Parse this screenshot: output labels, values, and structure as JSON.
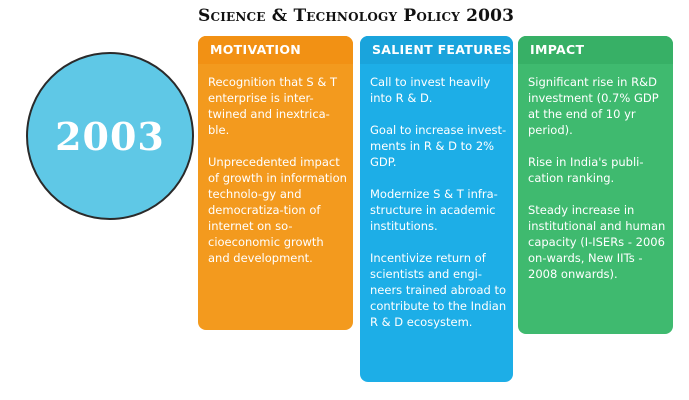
{
  "title": "Science & Technology Policy 2003",
  "year": "2003",
  "columns": [
    {
      "header": "MOTIVATION",
      "items": [
        "Recognition that S & T enterprise is inter-twined and inextrica-ble.",
        "Unprecedented impact of growth in information technolo-gy and democratiza-tion of internet on so-cioeconomic growth and development."
      ]
    },
    {
      "header": "SALIENT FEATURES",
      "items": [
        "Call to invest heavily into R & D.",
        "Goal to increase invest-ments in R & D to 2% GDP.",
        "Modernize S & T infra-structure in academic institutions.",
        "Incentivize return of scientists and engi-neers trained abroad to contribute to the Indian R & D ecosystem."
      ]
    },
    {
      "header": "IMPACT",
      "items": [
        "Significant rise in R&D investment (0.7% GDP at the end of 10 yr period).",
        "Rise in India's publi-cation ranking.",
        "Steady increase in institutional and human capacity (I-ISERs - 2006 on-wards, New IITs - 2008 onwards)."
      ]
    }
  ],
  "colors": {
    "motivation": "#f39a1e",
    "features": "#1daee7",
    "impact": "#3fba6f",
    "circle": "#5fc8e6"
  }
}
